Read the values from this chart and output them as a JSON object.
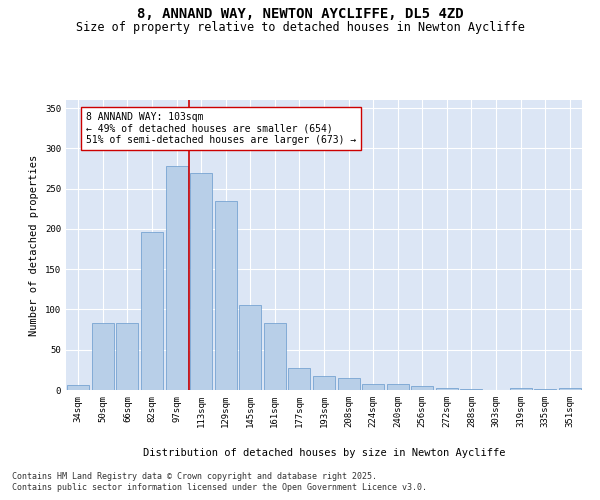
{
  "title_line1": "8, ANNAND WAY, NEWTON AYCLIFFE, DL5 4ZD",
  "title_line2": "Size of property relative to detached houses in Newton Aycliffe",
  "xlabel": "Distribution of detached houses by size in Newton Aycliffe",
  "ylabel": "Number of detached properties",
  "categories": [
    "34sqm",
    "50sqm",
    "66sqm",
    "82sqm",
    "97sqm",
    "113sqm",
    "129sqm",
    "145sqm",
    "161sqm",
    "177sqm",
    "193sqm",
    "208sqm",
    "224sqm",
    "240sqm",
    "256sqm",
    "272sqm",
    "288sqm",
    "303sqm",
    "319sqm",
    "335sqm",
    "351sqm"
  ],
  "values": [
    6,
    83,
    83,
    196,
    278,
    270,
    235,
    105,
    83,
    27,
    18,
    15,
    8,
    8,
    5,
    2,
    1,
    0,
    2,
    1,
    2
  ],
  "bar_color": "#b8cfe8",
  "bar_edge_color": "#6699cc",
  "vline_x": 4.5,
  "vline_color": "#cc0000",
  "annotation_text": "8 ANNAND WAY: 103sqm\n← 49% of detached houses are smaller (654)\n51% of semi-detached houses are larger (673) →",
  "annotation_box_color": "#ffffff",
  "annotation_box_edge": "#cc0000",
  "ylim": [
    0,
    360
  ],
  "yticks": [
    0,
    50,
    100,
    150,
    200,
    250,
    300,
    350
  ],
  "background_color": "#dce6f5",
  "grid_color": "#ffffff",
  "footer_line1": "Contains HM Land Registry data © Crown copyright and database right 2025.",
  "footer_line2": "Contains public sector information licensed under the Open Government Licence v3.0.",
  "title_fontsize": 10,
  "subtitle_fontsize": 8.5,
  "axis_label_fontsize": 7.5,
  "tick_fontsize": 6.5,
  "annotation_fontsize": 7,
  "footer_fontsize": 6
}
